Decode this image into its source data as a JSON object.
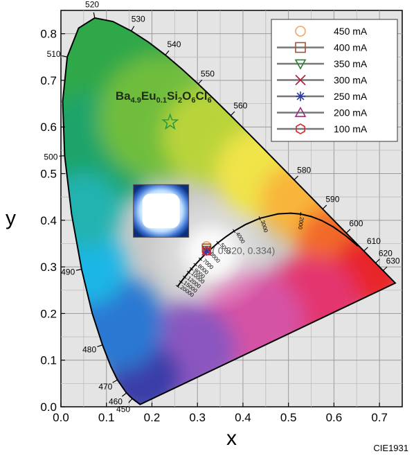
{
  "chart_data": {
    "type": "scatter",
    "title": "",
    "xlabel": "x",
    "ylabel": "y",
    "xlim": [
      0.0,
      0.75
    ],
    "ylim": [
      0.0,
      0.85
    ],
    "xticks": [
      "0.0",
      "0.1",
      "0.2",
      "0.3",
      "0.4",
      "0.5",
      "0.6",
      "0.7"
    ],
    "yticks": [
      "0.0",
      "0.1",
      "0.2",
      "0.3",
      "0.4",
      "0.5",
      "0.6",
      "0.7",
      "0.8"
    ],
    "grid": true,
    "legend_position": "top-right",
    "footer": "CIE1931",
    "compound": {
      "base": "Ba",
      "parts": [
        {
          "text": "4.9",
          "sub": true
        },
        {
          "text": "Eu",
          "sub": false
        },
        {
          "text": "0.1",
          "sub": true
        },
        {
          "text": "Si",
          "sub": false
        },
        {
          "text": "2",
          "sub": true
        },
        {
          "text": "O",
          "sub": false
        },
        {
          "text": "6",
          "sub": true
        },
        {
          "text": "Cl",
          "sub": false
        },
        {
          "text": "6",
          "sub": true
        }
      ]
    },
    "reference_point": {
      "x": 0.24,
      "y": 0.61,
      "marker": "star",
      "color": "#2e9a3e"
    },
    "coordinate_annotation": "( 0.320,  0.334)",
    "series": [
      {
        "name": "450 mA",
        "marker": "circle",
        "color": "#f4a261",
        "x": 0.32,
        "y": 0.345
      },
      {
        "name": "400 mA",
        "marker": "square",
        "color": "#a0522d",
        "x": 0.32,
        "y": 0.34
      },
      {
        "name": "350 mA",
        "marker": "triangle-down",
        "color": "#2e7d32",
        "x": 0.32,
        "y": 0.337
      },
      {
        "name": "300 mA",
        "marker": "x",
        "color": "#a61e3c",
        "x": 0.32,
        "y": 0.335
      },
      {
        "name": "250 mA",
        "marker": "asterisk",
        "color": "#2a3a9e",
        "x": 0.32,
        "y": 0.334
      },
      {
        "name": "200 mA",
        "marker": "triangle-up",
        "color": "#9e2a7a",
        "x": 0.32,
        "y": 0.333
      },
      {
        "name": "100 mA",
        "marker": "hexagon",
        "color": "#d62828",
        "x": 0.32,
        "y": 0.334
      }
    ],
    "spectral_locus": [
      {
        "nm": 380,
        "x": 0.1741,
        "y": 0.005
      },
      {
        "nm": 450,
        "x": 0.1566,
        "y": 0.0177
      },
      {
        "nm": 460,
        "x": 0.144,
        "y": 0.0297
      },
      {
        "nm": 470,
        "x": 0.1241,
        "y": 0.0578
      },
      {
        "nm": 475,
        "x": 0.1096,
        "y": 0.0868
      },
      {
        "nm": 480,
        "x": 0.0913,
        "y": 0.1327
      },
      {
        "nm": 485,
        "x": 0.0687,
        "y": 0.2007
      },
      {
        "nm": 490,
        "x": 0.0454,
        "y": 0.295
      },
      {
        "nm": 495,
        "x": 0.0235,
        "y": 0.4127
      },
      {
        "nm": 500,
        "x": 0.0082,
        "y": 0.5384
      },
      {
        "nm": 505,
        "x": 0.0039,
        "y": 0.6548
      },
      {
        "nm": 510,
        "x": 0.0139,
        "y": 0.7502
      },
      {
        "nm": 515,
        "x": 0.0389,
        "y": 0.812
      },
      {
        "nm": 520,
        "x": 0.0743,
        "y": 0.8338
      },
      {
        "nm": 525,
        "x": 0.1142,
        "y": 0.8262
      },
      {
        "nm": 530,
        "x": 0.1547,
        "y": 0.8059
      },
      {
        "nm": 535,
        "x": 0.1929,
        "y": 0.7816
      },
      {
        "nm": 540,
        "x": 0.2296,
        "y": 0.7543
      },
      {
        "nm": 545,
        "x": 0.2658,
        "y": 0.7243
      },
      {
        "nm": 550,
        "x": 0.3016,
        "y": 0.6923
      },
      {
        "nm": 555,
        "x": 0.3373,
        "y": 0.6589
      },
      {
        "nm": 560,
        "x": 0.3731,
        "y": 0.6245
      },
      {
        "nm": 565,
        "x": 0.4087,
        "y": 0.5896
      },
      {
        "nm": 570,
        "x": 0.4441,
        "y": 0.5547
      },
      {
        "nm": 575,
        "x": 0.4788,
        "y": 0.5202
      },
      {
        "nm": 580,
        "x": 0.5125,
        "y": 0.4866
      },
      {
        "nm": 585,
        "x": 0.5448,
        "y": 0.4544
      },
      {
        "nm": 590,
        "x": 0.5752,
        "y": 0.4242
      },
      {
        "nm": 595,
        "x": 0.6029,
        "y": 0.3965
      },
      {
        "nm": 600,
        "x": 0.627,
        "y": 0.3725
      },
      {
        "nm": 605,
        "x": 0.6482,
        "y": 0.3514
      },
      {
        "nm": 610,
        "x": 0.6658,
        "y": 0.334
      },
      {
        "nm": 620,
        "x": 0.6915,
        "y": 0.3083
      },
      {
        "nm": 630,
        "x": 0.7079,
        "y": 0.292
      },
      {
        "nm": 640,
        "x": 0.719,
        "y": 0.2809
      },
      {
        "nm": 700,
        "x": 0.7347,
        "y": 0.2653
      }
    ],
    "wavelength_labels": [
      {
        "text": "450",
        "nm": 450
      },
      {
        "text": "460",
        "nm": 460
      },
      {
        "text": "470",
        "nm": 470
      },
      {
        "text": "480",
        "nm": 480
      },
      {
        "text": "490",
        "nm": 490
      },
      {
        "text": "500",
        "nm": 500
      },
      {
        "text": "510",
        "nm": 510
      },
      {
        "text": "520",
        "nm": 520
      },
      {
        "text": "530",
        "nm": 530
      },
      {
        "text": "540",
        "nm": 540
      },
      {
        "text": "550",
        "nm": 550
      },
      {
        "text": "560",
        "nm": 560
      },
      {
        "text": "580",
        "nm": 580
      },
      {
        "text": "590",
        "nm": 590
      },
      {
        "text": "600",
        "nm": 600
      },
      {
        "text": "610",
        "nm": 610
      },
      {
        "text": "620",
        "nm": 620
      },
      {
        "text": "630",
        "nm": 630
      }
    ],
    "planckian_locus": [
      {
        "T": 1000,
        "x": 0.6528,
        "y": 0.3444
      },
      {
        "T": 1200,
        "x": 0.6251,
        "y": 0.3674
      },
      {
        "T": 1400,
        "x": 0.5985,
        "y": 0.3858
      },
      {
        "T": 1600,
        "x": 0.5732,
        "y": 0.3993
      },
      {
        "T": 1800,
        "x": 0.5496,
        "y": 0.4081
      },
      {
        "T": 2000,
        "x": 0.5267,
        "y": 0.4133
      },
      {
        "T": 2200,
        "x": 0.5046,
        "y": 0.4152
      },
      {
        "T": 2500,
        "x": 0.477,
        "y": 0.4137
      },
      {
        "T": 3000,
        "x": 0.4369,
        "y": 0.4041
      },
      {
        "T": 3500,
        "x": 0.4053,
        "y": 0.3907
      },
      {
        "T": 4000,
        "x": 0.3805,
        "y": 0.3768
      },
      {
        "T": 4500,
        "x": 0.3611,
        "y": 0.3636
      },
      {
        "T": 5000,
        "x": 0.3451,
        "y": 0.3516
      },
      {
        "T": 6000,
        "x": 0.3221,
        "y": 0.3318
      },
      {
        "T": 7000,
        "x": 0.3064,
        "y": 0.3166
      },
      {
        "T": 8000,
        "x": 0.2952,
        "y": 0.3048
      },
      {
        "T": 9000,
        "x": 0.2869,
        "y": 0.2956
      },
      {
        "T": 10000,
        "x": 0.2807,
        "y": 0.2884
      },
      {
        "T": 12000,
        "x": 0.2719,
        "y": 0.2779
      },
      {
        "T": 15000,
        "x": 0.2637,
        "y": 0.2677
      },
      {
        "T": 20000,
        "x": 0.2564,
        "y": 0.258
      }
    ],
    "cct_labels": [
      "2000",
      "3000",
      "4000",
      "5000",
      "6000",
      "7000",
      "8000",
      "9000",
      "10000",
      "12000",
      "15000",
      "20000"
    ],
    "inset_photo": {
      "x_center": 0.22,
      "y_center": 0.42
    }
  }
}
